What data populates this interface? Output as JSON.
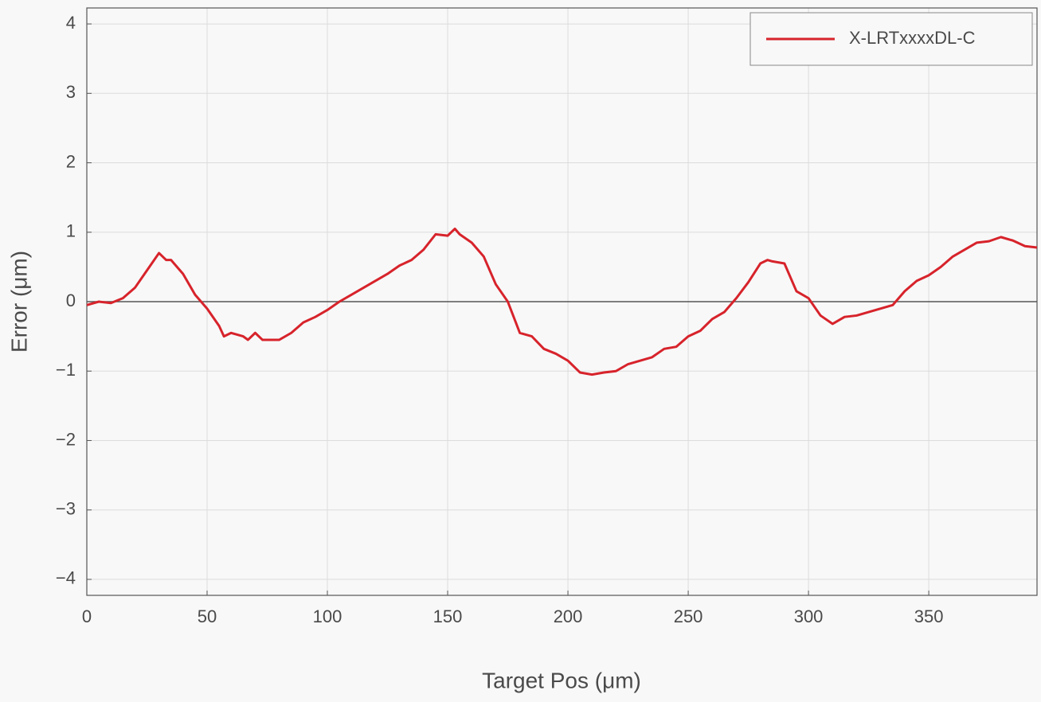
{
  "chart_data": {
    "type": "line",
    "xlabel": "Target Pos (μm)",
    "ylabel": "Error (μm)",
    "x": [
      0,
      5,
      10,
      15,
      20,
      25,
      30,
      33,
      35,
      40,
      45,
      50,
      55,
      57,
      60,
      65,
      67,
      70,
      73,
      80,
      85,
      90,
      95,
      100,
      105,
      110,
      115,
      120,
      125,
      130,
      135,
      140,
      145,
      150,
      153,
      155,
      160,
      165,
      170,
      175,
      180,
      185,
      190,
      195,
      200,
      205,
      210,
      215,
      220,
      225,
      230,
      235,
      240,
      245,
      250,
      255,
      260,
      265,
      270,
      275,
      280,
      283,
      285,
      290,
      295,
      300,
      305,
      310,
      315,
      320,
      325,
      330,
      335,
      340,
      345,
      350,
      355,
      360,
      365,
      370,
      375,
      380,
      385,
      390,
      395
    ],
    "series": [
      {
        "name": "X-LRTxxxxDL-C",
        "color": "#d7232b",
        "values": [
          -0.05,
          0.0,
          -0.02,
          0.05,
          0.2,
          0.45,
          0.7,
          0.6,
          0.6,
          0.4,
          0.1,
          -0.1,
          -0.35,
          -0.5,
          -0.45,
          -0.5,
          -0.55,
          -0.45,
          -0.55,
          -0.55,
          -0.45,
          -0.3,
          -0.22,
          -0.12,
          0.0,
          0.1,
          0.2,
          0.3,
          0.4,
          0.52,
          0.6,
          0.75,
          0.97,
          0.95,
          1.05,
          0.97,
          0.85,
          0.65,
          0.25,
          0.0,
          -0.45,
          -0.5,
          -0.68,
          -0.75,
          -0.85,
          -1.02,
          -1.05,
          -1.02,
          -1.0,
          -0.9,
          -0.85,
          -0.8,
          -0.68,
          -0.65,
          -0.5,
          -0.42,
          -0.25,
          -0.15,
          0.05,
          0.28,
          0.55,
          0.6,
          0.58,
          0.55,
          0.15,
          0.05,
          -0.2,
          -0.32,
          -0.22,
          -0.2,
          -0.15,
          -0.1,
          -0.05,
          0.15,
          0.3,
          0.38,
          0.5,
          0.65,
          0.75,
          0.85,
          0.87,
          0.93,
          0.88,
          0.8,
          0.78
        ]
      }
    ],
    "xlim": [
      0,
      395
    ],
    "ylim": [
      -4.23,
      4.23
    ],
    "xticks": [
      0,
      50,
      100,
      150,
      200,
      250,
      300,
      350
    ],
    "yticks": [
      {
        "value": -4,
        "label": "−4"
      },
      {
        "value": -3,
        "label": "−3"
      },
      {
        "value": -2,
        "label": "−2"
      },
      {
        "value": -1,
        "label": "−1"
      },
      0,
      1,
      2,
      3,
      4
    ],
    "grid": true,
    "legend": "upper right"
  }
}
